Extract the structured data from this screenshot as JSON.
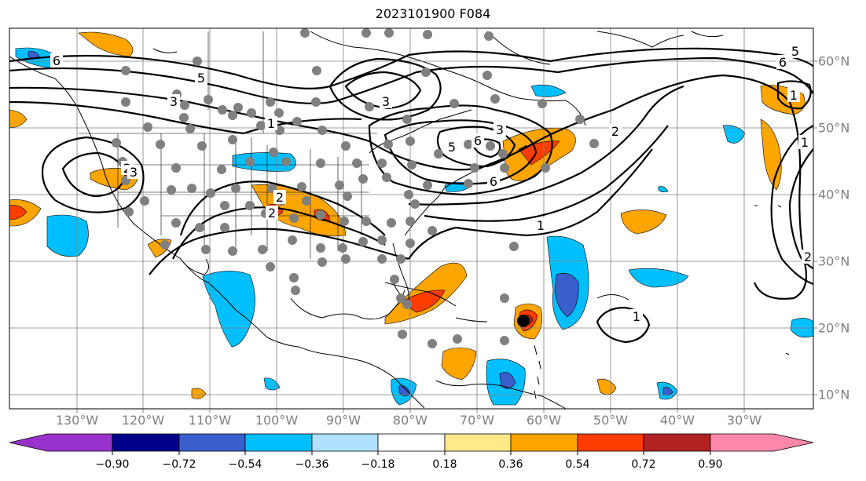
{
  "title": "2023101900 F084",
  "lon_labels": [
    "130°W",
    "120°W",
    "110°W",
    "100°W",
    "90°W",
    "80°W",
    "70°W",
    "60°W",
    "50°W",
    "40°W",
    "30°W"
  ],
  "lat_labels": [
    "60°N",
    "50°N",
    "40°N",
    "30°N",
    "20°N",
    "10°N"
  ],
  "contour_labels": [
    "6",
    "5",
    "3",
    "1",
    "2",
    "2",
    "3",
    "5",
    "6",
    "1",
    "3",
    "2",
    "1",
    "2",
    "5",
    "6",
    "1",
    "1",
    "2",
    "3",
    "6"
  ],
  "colorbar": {
    "ticks": [
      "−0.90",
      "−0.72",
      "−0.54",
      "−0.36",
      "−0.18",
      "0.18",
      "0.36",
      "0.54",
      "0.72",
      "0.90"
    ],
    "colors": [
      "#9932CC",
      "#00008B",
      "#3A5FCD",
      "#00BFFF",
      "#B0E2FF",
      "#FFFFFF",
      "#FFE98A",
      "#FFA500",
      "#FF3D00",
      "#B22222",
      "#FF88AA"
    ]
  }
}
